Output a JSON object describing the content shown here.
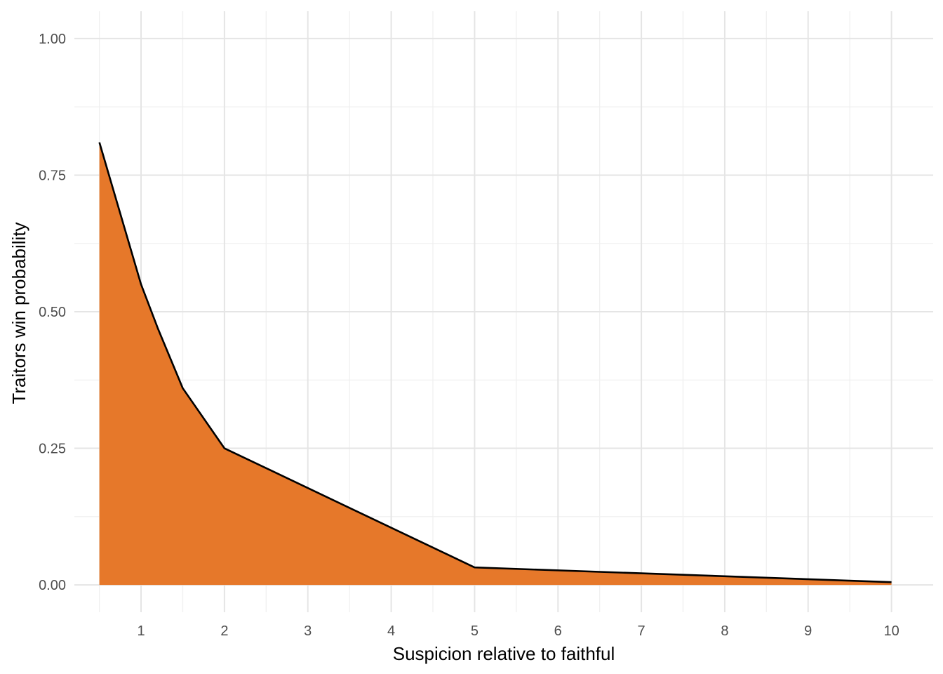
{
  "chart_data": {
    "type": "area",
    "title": "",
    "xlabel": "Suspicion relative to faithful",
    "ylabel": "Traitors win probability",
    "x": [
      0.5,
      1,
      1.2,
      1.5,
      2,
      5,
      10
    ],
    "series": [
      {
        "values": [
          0.81,
          0.55,
          0.47,
          0.36,
          0.25,
          0.032,
          0.005
        ]
      }
    ],
    "xlim": [
      0.2,
      10.5
    ],
    "ylim": [
      -0.05,
      1.05
    ],
    "x_ticks": [
      1,
      2,
      3,
      4,
      5,
      6,
      7,
      8,
      9,
      10
    ],
    "y_ticks": [
      0.0,
      0.25,
      0.5,
      0.75,
      1.0
    ],
    "y_tick_labels": [
      "0.00",
      "0.25",
      "0.50",
      "0.75",
      "1.00"
    ],
    "grid": true,
    "legend": "none",
    "fill_color": "#e6782a",
    "line_color": "#000000"
  }
}
